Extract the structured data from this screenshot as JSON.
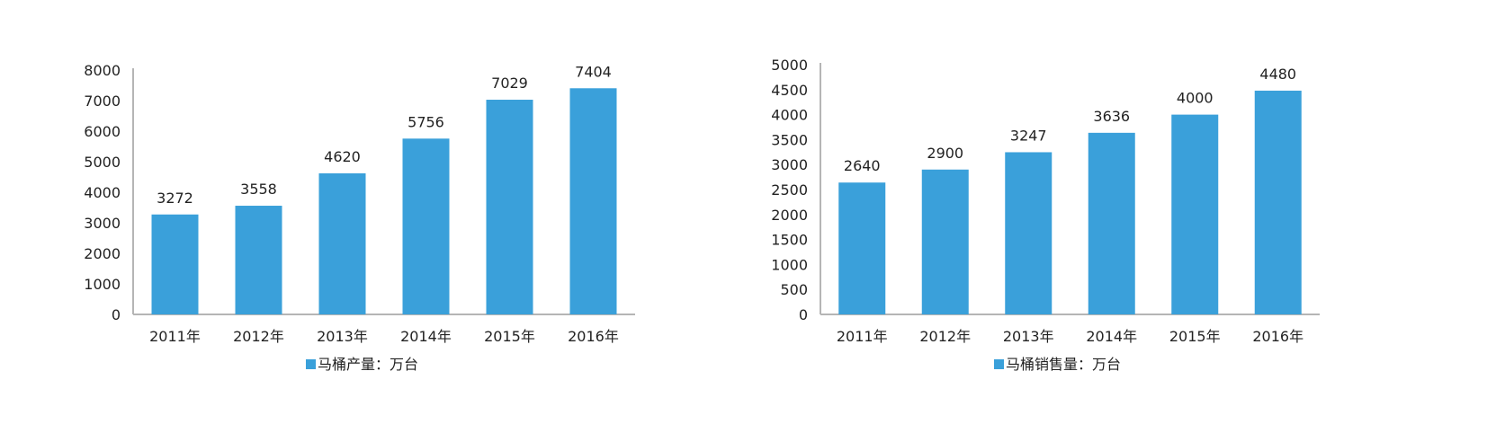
{
  "bar_color": "#3aa0da",
  "chart_data": [
    {
      "type": "bar",
      "categories": [
        "2011年",
        "2012年",
        "2013年",
        "2014年",
        "2015年",
        "2016年"
      ],
      "series": [
        {
          "name": "马桶产量：万台",
          "values": [
            3272,
            3558,
            4620,
            5756,
            7029,
            7404
          ]
        }
      ],
      "ylim": [
        0,
        8000
      ],
      "yticks": [
        0,
        1000,
        2000,
        3000,
        4000,
        5000,
        6000,
        7000,
        8000
      ],
      "grid": false,
      "legend": "bottom",
      "data_labels": true
    },
    {
      "type": "bar",
      "categories": [
        "2011年",
        "2012年",
        "2013年",
        "2014年",
        "2015年",
        "2016年"
      ],
      "series": [
        {
          "name": "马桶销售量：万台",
          "values": [
            2640,
            2900,
            3247,
            3636,
            4000,
            4480
          ]
        }
      ],
      "ylim": [
        0,
        5000
      ],
      "yticks": [
        0,
        500,
        1000,
        1500,
        2000,
        2500,
        3000,
        3500,
        4000,
        4500,
        5000
      ],
      "grid": false,
      "legend": "bottom",
      "data_labels": true
    }
  ]
}
